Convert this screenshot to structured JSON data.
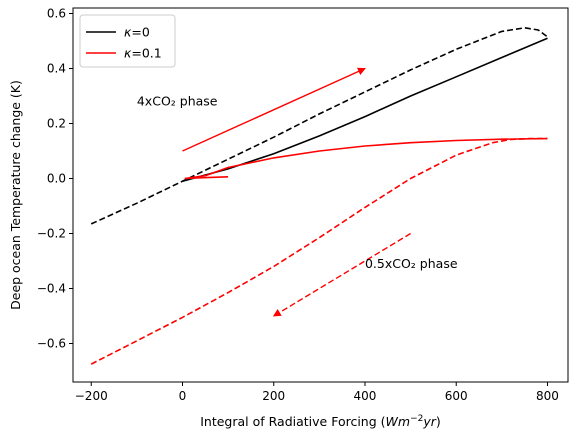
{
  "chart_data": {
    "type": "line",
    "title": "",
    "xlabel": "Integral of Radiative Forcing (Wm^-2 yr)",
    "ylabel": "Deep ocean Temperature change (K)",
    "xlim": [
      -240,
      845
    ],
    "ylim": [
      -0.74,
      0.62
    ],
    "xticks": [
      -200,
      0,
      200,
      400,
      600,
      800
    ],
    "yticks": [
      -0.6,
      -0.4,
      -0.2,
      0.0,
      0.2,
      0.4,
      0.6
    ],
    "xtick_labels": [
      "−200",
      "0",
      "200",
      "400",
      "600",
      "800"
    ],
    "ytick_labels": [
      "−0.6",
      "−0.4",
      "−0.2",
      "0.0",
      "0.2",
      "0.4",
      "0.6"
    ],
    "grid": false,
    "legend_position": "top-left",
    "legend": [
      {
        "label": "κ=0",
        "color": "#000000"
      },
      {
        "label": "κ=0.1",
        "color": "#ff0000"
      }
    ],
    "series": [
      {
        "name": "κ=0",
        "color": "#000000",
        "dash": "solid",
        "points": [
          [
            0,
            -0.01
          ],
          [
            100,
            0.035
          ],
          [
            200,
            0.09
          ],
          [
            300,
            0.155
          ],
          [
            400,
            0.225
          ],
          [
            500,
            0.3
          ],
          [
            600,
            0.37
          ],
          [
            700,
            0.44
          ],
          [
            800,
            0.51
          ]
        ]
      },
      {
        "name": "κ=0",
        "color": "#000000",
        "dash": "dashed",
        "points": [
          [
            -200,
            -0.165
          ],
          [
            -100,
            -0.09
          ],
          [
            0,
            -0.01
          ],
          [
            100,
            0.07
          ],
          [
            200,
            0.15
          ],
          [
            300,
            0.235
          ],
          [
            400,
            0.315
          ],
          [
            500,
            0.395
          ],
          [
            600,
            0.47
          ],
          [
            700,
            0.535
          ],
          [
            750,
            0.548
          ],
          [
            780,
            0.54
          ],
          [
            800,
            0.515
          ]
        ]
      },
      {
        "name": "κ=0.1",
        "color": "#ff0000",
        "dash": "solid",
        "points": [
          [
            5,
            0.0
          ],
          [
            50,
            0.01
          ],
          [
            100,
            0.04
          ],
          [
            200,
            0.075
          ],
          [
            300,
            0.1
          ],
          [
            400,
            0.118
          ],
          [
            500,
            0.13
          ],
          [
            600,
            0.138
          ],
          [
            700,
            0.143
          ],
          [
            800,
            0.145
          ]
        ]
      },
      {
        "name": "κ=0.1",
        "color": "#ff0000",
        "dash": "solid",
        "points": [
          [
            5,
            0.0
          ],
          [
            30,
            0.002
          ],
          [
            60,
            0.004
          ],
          [
            100,
            0.006
          ]
        ]
      },
      {
        "name": "κ=0.1",
        "color": "#ff0000",
        "dash": "dashed",
        "points": [
          [
            -200,
            -0.675
          ],
          [
            -100,
            -0.59
          ],
          [
            0,
            -0.505
          ],
          [
            100,
            -0.415
          ],
          [
            200,
            -0.32
          ],
          [
            300,
            -0.215
          ],
          [
            400,
            -0.105
          ],
          [
            500,
            0.0
          ],
          [
            600,
            0.085
          ],
          [
            680,
            0.13
          ],
          [
            720,
            0.142
          ],
          [
            760,
            0.145
          ],
          [
            800,
            0.145
          ]
        ]
      }
    ],
    "arrows": [
      {
        "color": "#ff0000",
        "dash": "solid",
        "from": [
          0,
          0.1
        ],
        "to": [
          400,
          0.4
        ]
      },
      {
        "color": "#ff0000",
        "dash": "dashed",
        "from": [
          500,
          -0.2
        ],
        "to": [
          200,
          -0.5
        ]
      }
    ],
    "annotations": [
      {
        "text": "4xCO₂ phase",
        "x": -100,
        "y": 0.265
      },
      {
        "text": "0.5xCO₂ phase",
        "x": 400,
        "y": -0.325
      }
    ]
  }
}
